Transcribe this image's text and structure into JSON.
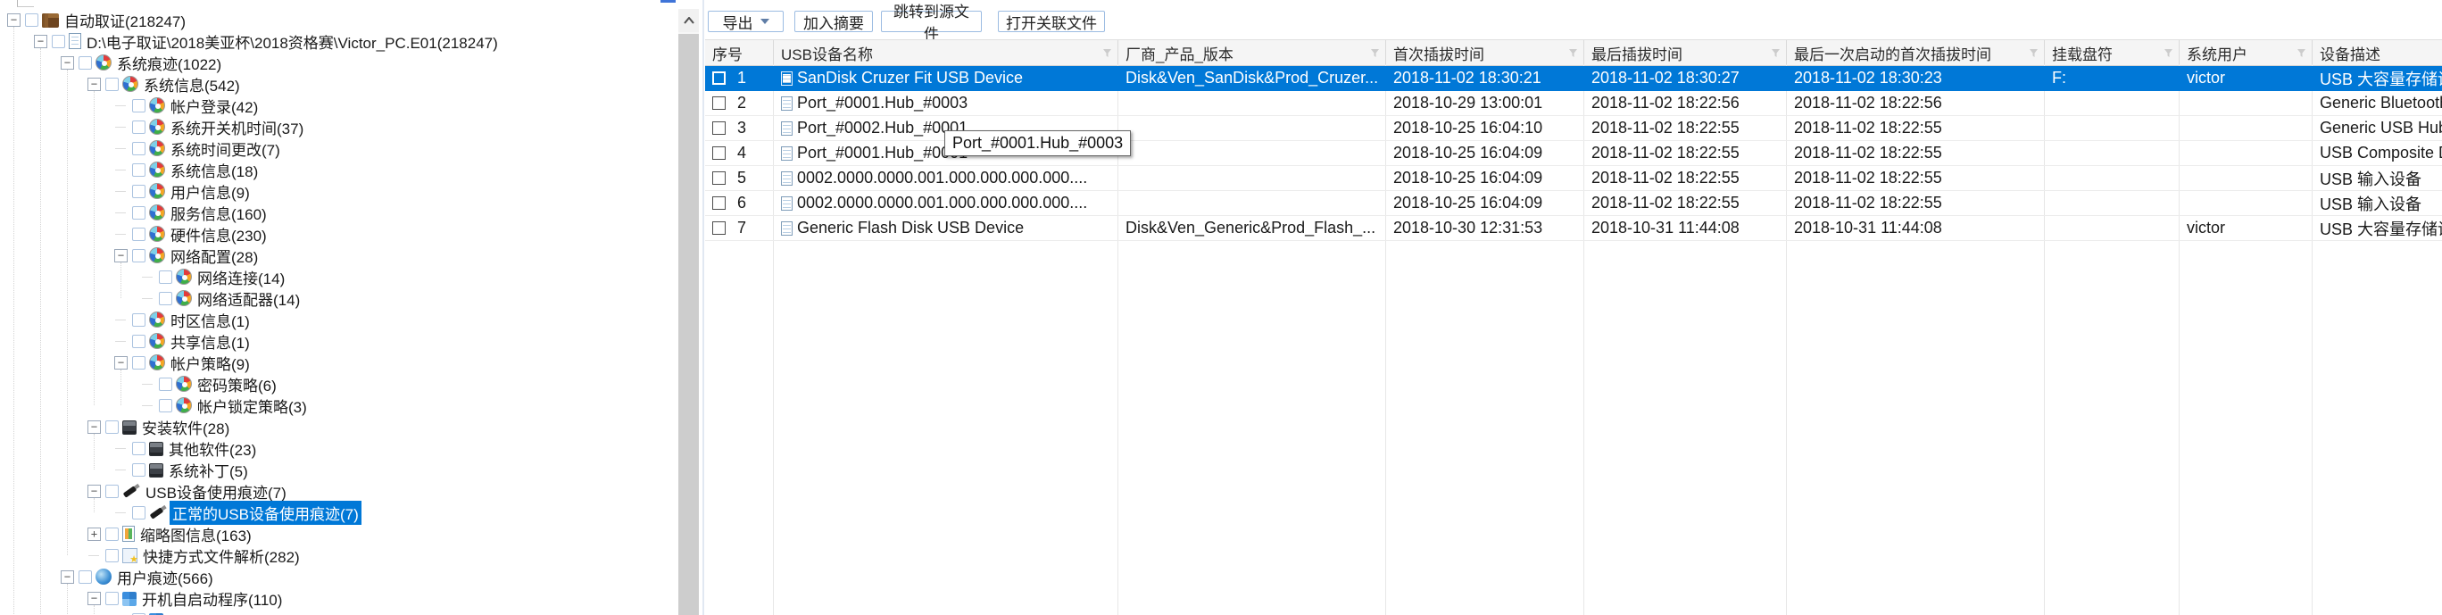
{
  "tree": {
    "items": [
      {
        "level": 0,
        "expand": "minus",
        "icon": "case",
        "label": "自动取证(218247)",
        "selected": false
      },
      {
        "level": 1,
        "expand": "minus",
        "icon": "evidence",
        "label": "D:\\电子取证\\2018美亚杯\\2018资格赛\\Victor_PC.E01(218247)",
        "selected": false
      },
      {
        "level": 2,
        "expand": "minus",
        "icon": "trace",
        "label": "系统痕迹(1022)",
        "selected": false
      },
      {
        "level": 3,
        "expand": "minus",
        "icon": "trace",
        "label": "系统信息(542)",
        "selected": false
      },
      {
        "level": 4,
        "expand": "none",
        "icon": "trace",
        "label": "帐户登录(42)",
        "selected": false
      },
      {
        "level": 4,
        "expand": "none",
        "icon": "trace",
        "label": "系统开关机时间(37)",
        "selected": false
      },
      {
        "level": 4,
        "expand": "none",
        "icon": "trace",
        "label": "系统时间更改(7)",
        "selected": false
      },
      {
        "level": 4,
        "expand": "none",
        "icon": "trace",
        "label": "系统信息(18)",
        "selected": false
      },
      {
        "level": 4,
        "expand": "none",
        "icon": "trace",
        "label": "用户信息(9)",
        "selected": false
      },
      {
        "level": 4,
        "expand": "none",
        "icon": "trace",
        "label": "服务信息(160)",
        "selected": false
      },
      {
        "level": 4,
        "expand": "none",
        "icon": "trace",
        "label": "硬件信息(230)",
        "selected": false
      },
      {
        "level": 4,
        "expand": "minus",
        "icon": "trace",
        "label": "网络配置(28)",
        "selected": false
      },
      {
        "level": 5,
        "expand": "none",
        "icon": "trace",
        "label": "网络连接(14)",
        "selected": false
      },
      {
        "level": 5,
        "expand": "none",
        "icon": "trace",
        "label": "网络适配器(14)",
        "selected": false
      },
      {
        "level": 4,
        "expand": "none",
        "icon": "trace",
        "label": "时区信息(1)",
        "selected": false
      },
      {
        "level": 4,
        "expand": "none",
        "icon": "trace",
        "label": "共享信息(1)",
        "selected": false
      },
      {
        "level": 4,
        "expand": "minus",
        "icon": "trace",
        "label": "帐户策略(9)",
        "selected": false
      },
      {
        "level": 5,
        "expand": "none",
        "icon": "trace",
        "label": "密码策略(6)",
        "selected": false
      },
      {
        "level": 5,
        "expand": "none",
        "icon": "trace",
        "label": "帐户锁定策略(3)",
        "selected": false
      },
      {
        "level": 3,
        "expand": "minus",
        "icon": "software",
        "label": "安装软件(28)",
        "selected": false
      },
      {
        "level": 4,
        "expand": "none",
        "icon": "software",
        "label": "其他软件(23)",
        "selected": false
      },
      {
        "level": 4,
        "expand": "none",
        "icon": "software",
        "label": "系统补丁(5)",
        "selected": false
      },
      {
        "level": 3,
        "expand": "minus",
        "icon": "usb",
        "label": "USB设备使用痕迹(7)",
        "selected": false
      },
      {
        "level": 4,
        "expand": "none",
        "icon": "usb",
        "label": "正常的USB设备使用痕迹(7)",
        "selected": true
      },
      {
        "level": 3,
        "expand": "plus",
        "icon": "thumbnail",
        "label": "缩略图信息(163)",
        "selected": false
      },
      {
        "level": 3,
        "expand": "none",
        "icon": "shortcut",
        "label": "快捷方式文件解析(282)",
        "selected": false
      },
      {
        "level": 2,
        "expand": "minus",
        "icon": "user",
        "label": "用户痕迹(566)",
        "selected": false
      },
      {
        "level": 3,
        "expand": "minus",
        "icon": "autostart",
        "label": "开机自启动程序(110)",
        "selected": false
      },
      {
        "level": 4,
        "expand": "none",
        "icon": "autostart",
        "label": "",
        "selected": false
      }
    ]
  },
  "toolbar": {
    "buttons": [
      {
        "label": "导出",
        "caret": true
      },
      {
        "label": "加入摘要",
        "caret": false
      },
      {
        "label": "跳转到源文件",
        "caret": false
      },
      {
        "label": "打开关联文件",
        "caret": false
      }
    ]
  },
  "table": {
    "columns": [
      {
        "label": "序号",
        "filter": false
      },
      {
        "label": "USB设备名称",
        "filter": true
      },
      {
        "label": "厂商_产品_版本",
        "filter": true
      },
      {
        "label": "首次插拔时间",
        "filter": true
      },
      {
        "label": "最后插拔时间",
        "filter": true
      },
      {
        "label": "最后一次启动的首次插拔时间",
        "filter": true
      },
      {
        "label": "挂载盘符",
        "filter": true
      },
      {
        "label": "系统用户",
        "filter": true
      },
      {
        "label": "设备描述",
        "filter": false
      }
    ],
    "rows": [
      {
        "seq": "1",
        "name": "SanDisk Cruzer Fit USB Device",
        "vendor": "Disk&Ven_SanDisk&Prod_Cruzer...",
        "first": "2018-11-02 18:30:21",
        "last": "2018-11-02 18:30:27",
        "lastBootFirst": "2018-11-02 18:30:23",
        "drive": "F:",
        "user": "victor",
        "desc": "USB 大容量存储设备",
        "selected": true
      },
      {
        "seq": "2",
        "name": "Port_#0001.Hub_#0003",
        "vendor": "",
        "first": "2018-10-29 13:00:01",
        "last": "2018-11-02 18:22:56",
        "lastBootFirst": "2018-11-02 18:22:56",
        "drive": "",
        "user": "",
        "desc": "Generic Bluetooth...",
        "selected": false
      },
      {
        "seq": "3",
        "name": "Port_#0002.Hub_#0001",
        "vendor": "",
        "first": "2018-10-25 16:04:10",
        "last": "2018-11-02 18:22:55",
        "lastBootFirst": "2018-11-02 18:22:55",
        "drive": "",
        "user": "",
        "desc": "Generic USB Hub",
        "selected": false
      },
      {
        "seq": "4",
        "name": "Port_#0001.Hub_#0001",
        "vendor": "",
        "first": "2018-10-25 16:04:09",
        "last": "2018-11-02 18:22:55",
        "lastBootFirst": "2018-11-02 18:22:55",
        "drive": "",
        "user": "",
        "desc": "USB Composite Device",
        "selected": false
      },
      {
        "seq": "5",
        "name": "0002.0000.0000.001.000.000.000.000....",
        "vendor": "",
        "first": "2018-10-25 16:04:09",
        "last": "2018-11-02 18:22:55",
        "lastBootFirst": "2018-11-02 18:22:55",
        "drive": "",
        "user": "",
        "desc": "USB 输入设备",
        "selected": false
      },
      {
        "seq": "6",
        "name": "0002.0000.0000.001.000.000.000.000....",
        "vendor": "",
        "first": "2018-10-25 16:04:09",
        "last": "2018-11-02 18:22:55",
        "lastBootFirst": "2018-11-02 18:22:55",
        "drive": "",
        "user": "",
        "desc": "USB 输入设备",
        "selected": false
      },
      {
        "seq": "7",
        "name": "Generic Flash Disk USB Device",
        "vendor": "Disk&Ven_Generic&Prod_Flash_...",
        "first": "2018-10-30 12:31:53",
        "last": "2018-10-31 11:44:08",
        "lastBootFirst": "2018-10-31 11:44:08",
        "drive": "",
        "user": "victor",
        "desc": "USB 大容量存储设备",
        "selected": false
      }
    ]
  },
  "tooltip": {
    "text": "Port_#0001.Hub_#0003"
  },
  "colors": {
    "selection": "#0078d7",
    "header_bg": "#f5f5f5",
    "grid_line": "#e7e7e7",
    "button_border": "#9cbce2"
  }
}
